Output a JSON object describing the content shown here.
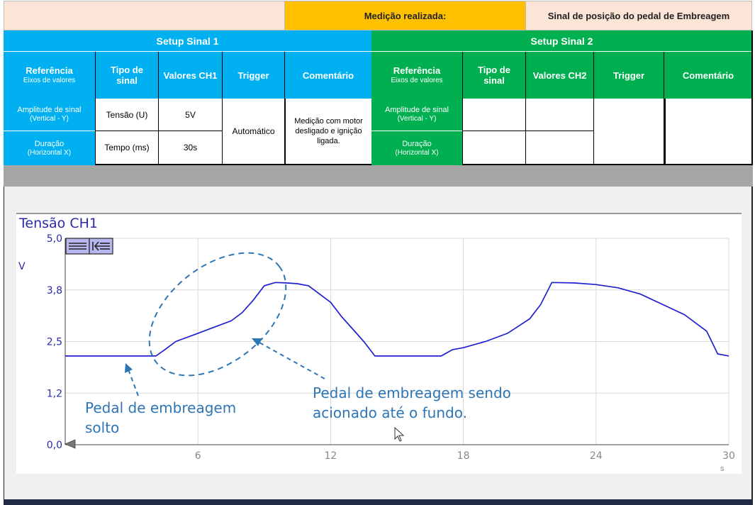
{
  "header": {
    "measurement_label": "Medição realizada:",
    "measurement_value": "Sinal de posição do pedal de Embreagem"
  },
  "setup1": {
    "title": "Setup Sinal 1",
    "col_ref": "Referência",
    "col_ref_sub": "Eixos de valores",
    "col_type": "Tipo de sinal",
    "col_values": "Valores CH1",
    "col_trigger": "Trigger",
    "col_comment": "Comentário",
    "row1_ref": "Amplitude de sinal",
    "row1_ref_sub": "(Vertical - Y)",
    "row1_type": "Tensão (U)",
    "row1_value": "5V",
    "row2_ref": "Duração",
    "row2_ref_sub": "(Horizontal X)",
    "row2_type": "Tempo (ms)",
    "row2_value": "30s",
    "trigger": "Automático",
    "comment": "Medição com motor desligado e ignição ligada."
  },
  "setup2": {
    "title": "Setup Sinal 2",
    "col_ref": "Referência",
    "col_ref_sub": "Eixos de valores",
    "col_type": "Tipo de sinal",
    "col_values": "Valores CH2",
    "col_trigger": "Trigger",
    "col_comment": "Comentário",
    "row1_ref": "Amplitude de sinal",
    "row1_ref_sub": "(Vertical - Y)",
    "row2_ref": "Duração",
    "row2_ref_sub": "(Horizontal X)"
  },
  "chart": {
    "title": "Tensão CH1",
    "unit_y": "V",
    "unit_x": "s",
    "annotation_released": "Pedal de embreagem\nsolto",
    "annotation_pressed": "Pedal de embreagem sendo\nacionado até o fundo."
  },
  "chart_data": {
    "type": "line",
    "title": "Tensão CH1",
    "ylabel": "V",
    "xlabel": "s",
    "xlim": [
      0,
      30
    ],
    "ylim": [
      0,
      5
    ],
    "y_ticks": [
      "0,0",
      "1,2",
      "2,5",
      "3,8",
      "5,0"
    ],
    "y_tick_values": [
      0,
      1.25,
      2.5,
      3.75,
      5
    ],
    "x_ticks": [
      "6",
      "12",
      "18",
      "24",
      "30"
    ],
    "x_tick_values": [
      6,
      12,
      18,
      24,
      30
    ],
    "grid": true,
    "series": [
      {
        "color": "#1f1fd0",
        "x": [
          0,
          2,
          4,
          4.1,
          4.5,
          5,
          6,
          7,
          7.5,
          8,
          8.5,
          9,
          9.5,
          10,
          10.5,
          11,
          12,
          12.5,
          13,
          13.5,
          14,
          15,
          16,
          17,
          17.5,
          18,
          19,
          20,
          21,
          21.5,
          22,
          23,
          24,
          25,
          26,
          27,
          28,
          29,
          29.5,
          30
        ],
        "values": [
          2.15,
          2.15,
          2.15,
          2.15,
          2.3,
          2.5,
          2.7,
          2.9,
          3.0,
          3.2,
          3.5,
          3.85,
          3.93,
          3.92,
          3.9,
          3.85,
          3.45,
          3.1,
          2.8,
          2.5,
          2.15,
          2.15,
          2.15,
          2.15,
          2.3,
          2.35,
          2.5,
          2.7,
          3.05,
          3.4,
          3.93,
          3.92,
          3.88,
          3.8,
          3.65,
          3.4,
          3.15,
          2.75,
          2.2,
          2.15
        ]
      }
    ]
  }
}
